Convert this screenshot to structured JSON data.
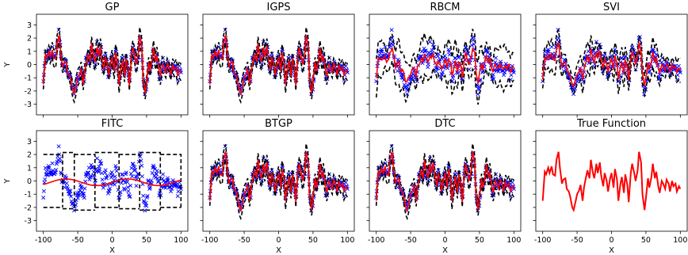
{
  "figure": {
    "background": "#ffffff"
  },
  "style": {
    "true_function_color": "#ff0000",
    "observation_color": "#0000ff",
    "confidence_band_color": "#000000",
    "mean_color": "#ff0000"
  },
  "axes": {
    "xlabel": "X",
    "ylabel": "Y",
    "xlim": [
      -110,
      110
    ],
    "ylim": [
      -3.8,
      3.8
    ],
    "xticks": [
      -100,
      -50,
      0,
      50,
      100
    ],
    "yticks": [
      -3,
      -2,
      -1,
      0,
      1,
      2,
      3
    ]
  },
  "chart_data": [
    {
      "type": "line",
      "title": "GP",
      "band": "tight"
    },
    {
      "type": "line",
      "title": "IGPS",
      "band": "tight"
    },
    {
      "type": "line",
      "title": "RBCM",
      "band": "wide"
    },
    {
      "type": "line",
      "title": "SVI",
      "band": "medium"
    },
    {
      "type": "line",
      "title": "FITC",
      "band": "flat"
    },
    {
      "type": "line",
      "title": "BTGP",
      "band": "tight"
    },
    {
      "type": "line",
      "title": "DTC",
      "band": "tight"
    },
    {
      "type": "line",
      "title": "True Function",
      "band": "none"
    }
  ],
  "true_function": {
    "x": [
      -100,
      -97,
      -95,
      -92,
      -90,
      -87,
      -85,
      -82,
      -80,
      -77,
      -75,
      -72,
      -70,
      -67,
      -65,
      -62,
      -60,
      -57,
      -55,
      -52,
      -50,
      -47,
      -45,
      -42,
      -40,
      -37,
      -35,
      -32,
      -30,
      -27,
      -25,
      -22,
      -20,
      -17,
      -15,
      -12,
      -10,
      -7,
      -5,
      -2,
      0,
      3,
      5,
      8,
      10,
      13,
      15,
      18,
      20,
      23,
      25,
      28,
      30,
      33,
      35,
      38,
      40,
      43,
      45,
      48,
      50,
      53,
      55,
      58,
      60,
      63,
      65,
      68,
      70,
      73,
      75,
      78,
      80,
      83,
      85,
      88,
      90,
      93,
      95,
      98,
      100
    ],
    "y": [
      -1.5,
      0.7,
      0.5,
      1.0,
      0.6,
      1.1,
      0.5,
      0.4,
      1.6,
      2.2,
      1.0,
      -0.2,
      0.1,
      0.2,
      -0.6,
      -0.8,
      -1.2,
      -2.0,
      -2.2,
      -1.5,
      -1.0,
      -0.7,
      -0.3,
      -1.5,
      -0.5,
      0.3,
      0.8,
      0.2,
      1.6,
      0.6,
      0.2,
      1.3,
      0.6,
      1.4,
      0.4,
      -0.4,
      0.6,
      0.0,
      -0.8,
      0.2,
      0.6,
      -0.5,
      0.9,
      0.1,
      -1.5,
      -0.2,
      0.3,
      -0.9,
      0.5,
      -0.3,
      -1.6,
      0.6,
      1.3,
      0.6,
      0.0,
      0.8,
      2.2,
      1.4,
      -1.0,
      -2.2,
      -1.3,
      0.2,
      -0.5,
      0.3,
      1.3,
      0.2,
      0.7,
      -0.4,
      -0.9,
      0.0,
      -0.2,
      -0.6,
      0.1,
      -0.2,
      -0.8,
      0.0,
      -0.4,
      -0.2,
      -0.8,
      -0.4,
      -0.6
    ]
  }
}
